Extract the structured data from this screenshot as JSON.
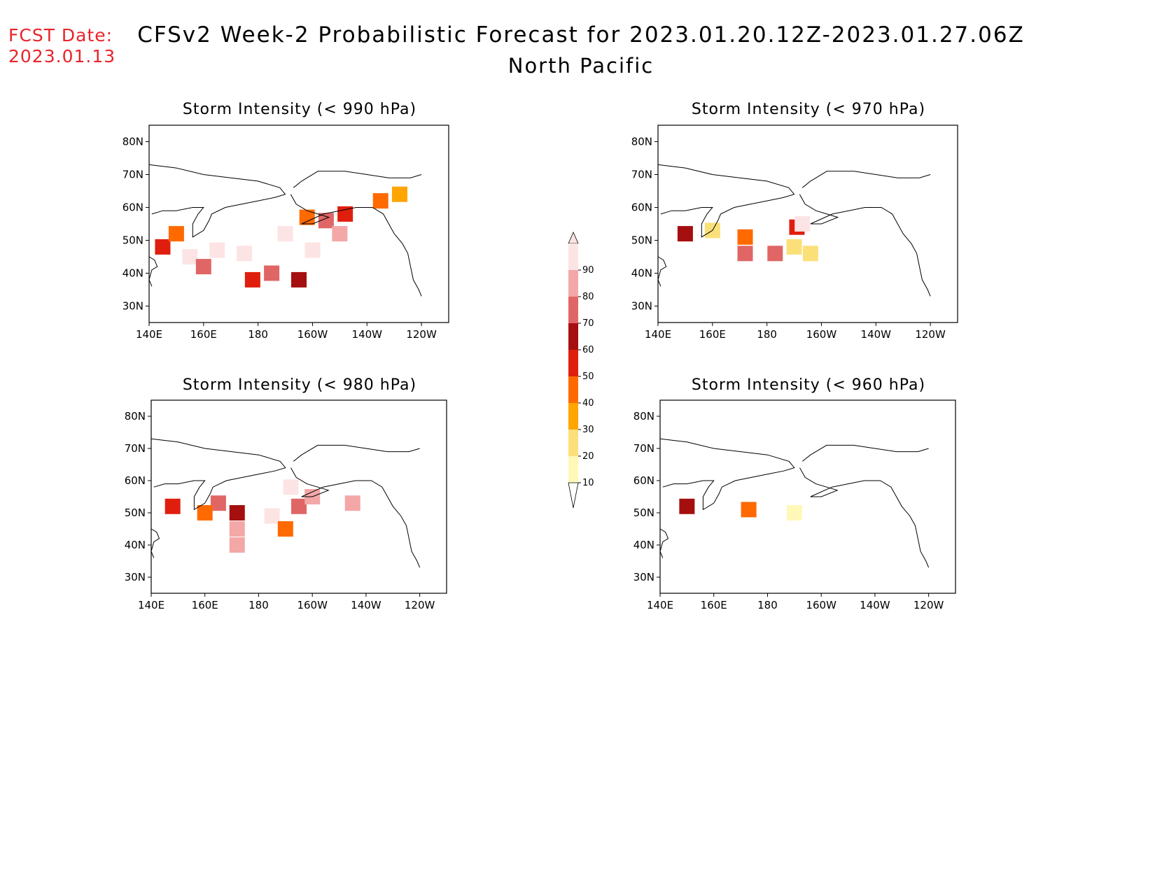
{
  "header": {
    "fcst_label": "FCST Date:",
    "fcst_date": "2023.01.13",
    "title": "CFSv2 Week-2 Probabilistic Forecast for 2023.01.20.12Z-2023.01.27.06Z",
    "subtitle": "North Pacific"
  },
  "axes": {
    "lon_ticks": [
      "140E",
      "160E",
      "180",
      "160W",
      "140W",
      "120W"
    ],
    "lat_ticks": [
      "80N",
      "70N",
      "60N",
      "50N",
      "40N",
      "30N"
    ]
  },
  "panels": [
    {
      "id": "p990",
      "title": "Storm Intensity (< 990 hPa)"
    },
    {
      "id": "p970",
      "title": "Storm Intensity (< 970 hPa)"
    },
    {
      "id": "p980",
      "title": "Storm Intensity (< 980 hPa)"
    },
    {
      "id": "p960",
      "title": "Storm Intensity (< 960 hPa)"
    }
  ],
  "colorbar": {
    "levels": [
      "90",
      "80",
      "70",
      "60",
      "50",
      "40",
      "30",
      "20",
      "10"
    ],
    "colors": [
      "#fde4e4",
      "#f4a7a7",
      "#e06666",
      "#a50f0f",
      "#e01e0e",
      "#ff6a00",
      "#ffa500",
      "#fbe07a",
      "#fff8b8"
    ]
  },
  "chart_data": {
    "type": "heatmap",
    "units": "probability (%)",
    "lon_range": [
      "140E",
      "120W"
    ],
    "lat_range": [
      "25N",
      "85N"
    ],
    "fields": [
      {
        "panel": "p990",
        "cells": [
          [
            155,
            45,
            95
          ],
          [
            165,
            47,
            95
          ],
          [
            175,
            46,
            95
          ],
          [
            190,
            52,
            90
          ],
          [
            200,
            47,
            90
          ],
          [
            160,
            42,
            75
          ],
          [
            185,
            40,
            70
          ],
          [
            205,
            56,
            70
          ],
          [
            210,
            52,
            80
          ],
          [
            145,
            48,
            50
          ],
          [
            150,
            52,
            40
          ],
          [
            178,
            38,
            55
          ],
          [
            195,
            38,
            60
          ],
          [
            212,
            58,
            55
          ],
          [
            198,
            57,
            40
          ],
          [
            225,
            62,
            40
          ],
          [
            232,
            64,
            30
          ]
        ]
      },
      {
        "panel": "p970",
        "cells": [
          [
            172,
            51,
            45
          ],
          [
            172,
            46,
            70
          ],
          [
            183,
            46,
            70
          ],
          [
            191,
            54,
            55
          ],
          [
            193,
            55,
            90
          ],
          [
            190,
            48,
            25
          ],
          [
            196,
            46,
            20
          ],
          [
            150,
            52,
            60
          ],
          [
            160,
            53,
            20
          ]
        ]
      },
      {
        "panel": "p980",
        "cells": [
          [
            165,
            53,
            70
          ],
          [
            172,
            50,
            60
          ],
          [
            172,
            45,
            85
          ],
          [
            172,
            40,
            80
          ],
          [
            185,
            49,
            90
          ],
          [
            195,
            52,
            75
          ],
          [
            192,
            58,
            90
          ],
          [
            200,
            55,
            85
          ],
          [
            215,
            53,
            80
          ],
          [
            160,
            50,
            45
          ],
          [
            190,
            45,
            40
          ],
          [
            148,
            52,
            55
          ]
        ]
      },
      {
        "panel": "p960",
        "cells": [
          [
            173,
            51,
            40
          ],
          [
            150,
            52,
            60
          ],
          [
            190,
            50,
            15
          ]
        ]
      }
    ]
  }
}
